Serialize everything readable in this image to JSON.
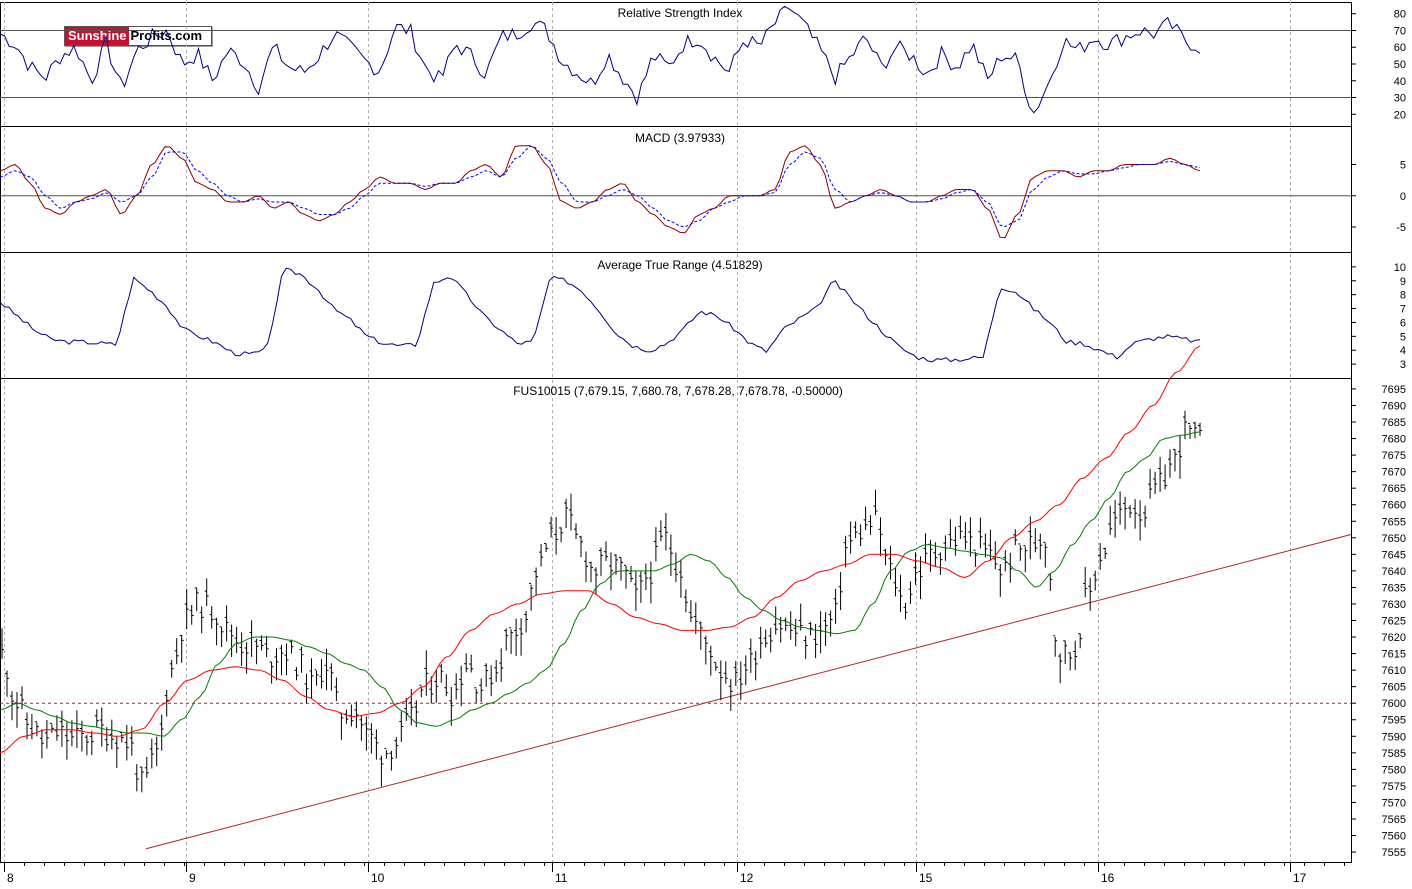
{
  "logo": {
    "part1": "Sunshine",
    "part2": "Profits.com"
  },
  "colors": {
    "price_bars": "#000000",
    "rsi_line": "#000080",
    "macd_line": "#8b0000",
    "macd_signal": "#0000ff",
    "atr_line": "#000080",
    "ma_short": "#008000",
    "ma_long": "#ff0000",
    "trendline": "#b22222",
    "level_line": "#b22222"
  },
  "chart_data": [
    {
      "type": "line",
      "title": "Relative Strength Index",
      "ylim": [
        13,
        87
      ],
      "yticks": [
        80,
        70,
        60,
        50,
        40,
        30,
        20
      ],
      "reference_lines": [
        70,
        30
      ],
      "series": [
        {
          "values": [
            68,
            62,
            48,
            42,
            55,
            60,
            40,
            62,
            35,
            58,
            66,
            70,
            50,
            56,
            40,
            58,
            52,
            36,
            60,
            48,
            45,
            55,
            68,
            60,
            52,
            46,
            72,
            70,
            48,
            40,
            62,
            55,
            44,
            66,
            68,
            75,
            70,
            52,
            45,
            38,
            56,
            42,
            30,
            55,
            48,
            62,
            66,
            54,
            45,
            65,
            60,
            74,
            84,
            72,
            58,
            42,
            54,
            66,
            48,
            60,
            55,
            44,
            56,
            48,
            62,
            40,
            56,
            52,
            20,
            38,
            64,
            58,
            66,
            62,
            66,
            70,
            68,
            74,
            64,
            60
          ]
        }
      ]
    },
    {
      "type": "line",
      "title": "MACD (3.97933)",
      "ylim": [
        -9,
        11
      ],
      "yticks": [
        5,
        0,
        -5
      ],
      "reference_lines": [
        0
      ],
      "series": [
        {
          "values": [
            4,
            5,
            2,
            -2,
            -3,
            -1,
            0,
            1,
            -3,
            0,
            5,
            8,
            6,
            2,
            1,
            -1,
            -1,
            0,
            -2,
            -1,
            -3,
            -4,
            -3,
            -1,
            1,
            3,
            2,
            2,
            1,
            2,
            2,
            4,
            5,
            3,
            8,
            8,
            5,
            -1,
            -2,
            -1,
            1,
            2,
            -1,
            -3,
            -5,
            -6,
            -3,
            -2,
            0,
            0,
            0,
            1,
            7,
            8,
            5,
            -2,
            -1,
            0,
            1,
            0,
            -1,
            -1,
            0,
            1,
            1,
            -2,
            -7,
            -3,
            3,
            4,
            4,
            3,
            4,
            4,
            5,
            5,
            5,
            6,
            5,
            4
          ]
        },
        {
          "values": [
            3,
            4,
            3,
            0,
            -2,
            -1,
            -0.5,
            0.5,
            -1,
            0,
            3,
            7,
            7,
            4,
            2,
            0,
            -1,
            -0.5,
            -1,
            -1,
            -2,
            -3,
            -3,
            -2,
            0,
            2,
            2,
            2,
            1.5,
            2,
            2,
            3,
            4,
            3,
            6,
            8,
            6,
            2,
            -1,
            -1,
            0,
            1,
            0,
            -2,
            -4,
            -5,
            -4,
            -2,
            -1,
            0,
            0,
            0.5,
            5,
            7,
            6,
            1,
            -1,
            0,
            0.5,
            0,
            -1,
            -1,
            -0.5,
            0.5,
            1,
            -1,
            -5,
            -4,
            1,
            3,
            4,
            3.5,
            3.5,
            4,
            4.5,
            5,
            5,
            5.5,
            5,
            4.5
          ]
        }
      ]
    },
    {
      "type": "line",
      "title": "Average True Range (4.51829)",
      "ylim": [
        2,
        11
      ],
      "yticks": [
        10,
        9,
        8,
        7,
        6,
        5,
        4,
        3
      ],
      "series": [
        {
          "values": [
            7.5,
            6.5,
            5.5,
            4.8,
            4.6,
            4.6,
            4.5,
            4.4,
            9.2,
            8.3,
            7.2,
            5.5,
            5.0,
            4.5,
            3.8,
            3.7,
            4.0,
            9.8,
            9.5,
            8.5,
            7.0,
            6.2,
            5.0,
            4.5,
            4.3,
            4.4,
            8.8,
            9.4,
            8.0,
            6.5,
            5.5,
            4.5,
            4.6,
            9.2,
            9.0,
            8.2,
            6.8,
            5.2,
            4.3,
            4.0,
            4.5,
            5.5,
            6.8,
            6.5,
            5.6,
            4.5,
            3.9,
            5.5,
            6.3,
            7.0,
            9.0,
            7.8,
            6.5,
            5.3,
            4.2,
            3.5,
            3.3,
            3.3,
            3.4,
            3.5,
            8.6,
            8.2,
            7.0,
            6.0,
            4.6,
            4.5,
            4.0,
            3.5,
            4.5,
            4.8,
            5.0,
            4.8,
            4.6
          ]
        }
      ]
    },
    {
      "type": "candlestick",
      "title": "FUS10015 (7,679.15, 7,680.78, 7,678.28, 7,678.78, -0.50000)",
      "ylim": [
        7552,
        7698
      ],
      "yticks": [
        7695,
        7690,
        7685,
        7680,
        7675,
        7670,
        7665,
        7660,
        7655,
        7650,
        7645,
        7640,
        7635,
        7630,
        7625,
        7620,
        7615,
        7610,
        7605,
        7600,
        7595,
        7590,
        7585,
        7580,
        7575,
        7570,
        7565,
        7560,
        7555
      ],
      "categories": [
        "8",
        "9",
        "10",
        "11",
        "12",
        "15",
        "16",
        "17"
      ],
      "reference_level": 7600,
      "trendline": {
        "from": 7556,
        "to": 7651
      },
      "closes": [
        7615,
        7600,
        7593,
        7588,
        7591,
        7589,
        7590,
        7592,
        7590,
        7588,
        7575,
        7585,
        7610,
        7625,
        7630,
        7628,
        7622,
        7618,
        7617,
        7614,
        7616,
        7612,
        7605,
        7612,
        7597,
        7598,
        7590,
        7585,
        7588,
        7595,
        7605,
        7608,
        7603,
        7612,
        7605,
        7610,
        7620,
        7625,
        7640,
        7650,
        7656,
        7648,
        7640,
        7642,
        7640,
        7632,
        7640,
        7650,
        7642,
        7625,
        7618,
        7610,
        7606,
        7612,
        7620,
        7624,
        7622,
        7620,
        7621,
        7625,
        7648,
        7652,
        7655,
        7640,
        7630,
        7640,
        7645,
        7648,
        7650,
        7648,
        7645,
        7640,
        7646,
        7648,
        7650,
        7615,
        7615,
        7632,
        7645,
        7655,
        7660,
        7658,
        7665,
        7672,
        7682,
        7679
      ],
      "ma_short": [
        7598,
        7600,
        7598,
        7596,
        7594,
        7593,
        7592,
        7591,
        7591,
        7590,
        7595,
        7602,
        7612,
        7618,
        7620,
        7620,
        7619,
        7617,
        7615,
        7612,
        7610,
        7605,
        7598,
        7594,
        7593,
        7595,
        7598,
        7600,
        7603,
        7606,
        7610,
        7618,
        7628,
        7636,
        7640,
        7640,
        7640,
        7642,
        7645,
        7643,
        7638,
        7632,
        7628,
        7625,
        7623,
        7622,
        7621,
        7622,
        7630,
        7640,
        7646,
        7648,
        7647,
        7646,
        7645,
        7644,
        7640,
        7635,
        7640,
        7648,
        7655,
        7662,
        7670,
        7674,
        7680,
        7681,
        7682
      ],
      "ma_long": [
        7585,
        7590,
        7592,
        7592,
        7591,
        7590,
        7592,
        7600,
        7607,
        7610,
        7611,
        7610,
        7607,
        7602,
        7598,
        7596,
        7597,
        7600,
        7605,
        7614,
        7622,
        7627,
        7630,
        7633,
        7634,
        7634,
        7630,
        7626,
        7624,
        7622,
        7622,
        7623,
        7626,
        7632,
        7637,
        7640,
        7642,
        7645,
        7645,
        7643,
        7641,
        7638,
        7643,
        7650,
        7655,
        7660,
        7668,
        7674,
        7682,
        7690,
        7700,
        7708
      ]
    }
  ]
}
